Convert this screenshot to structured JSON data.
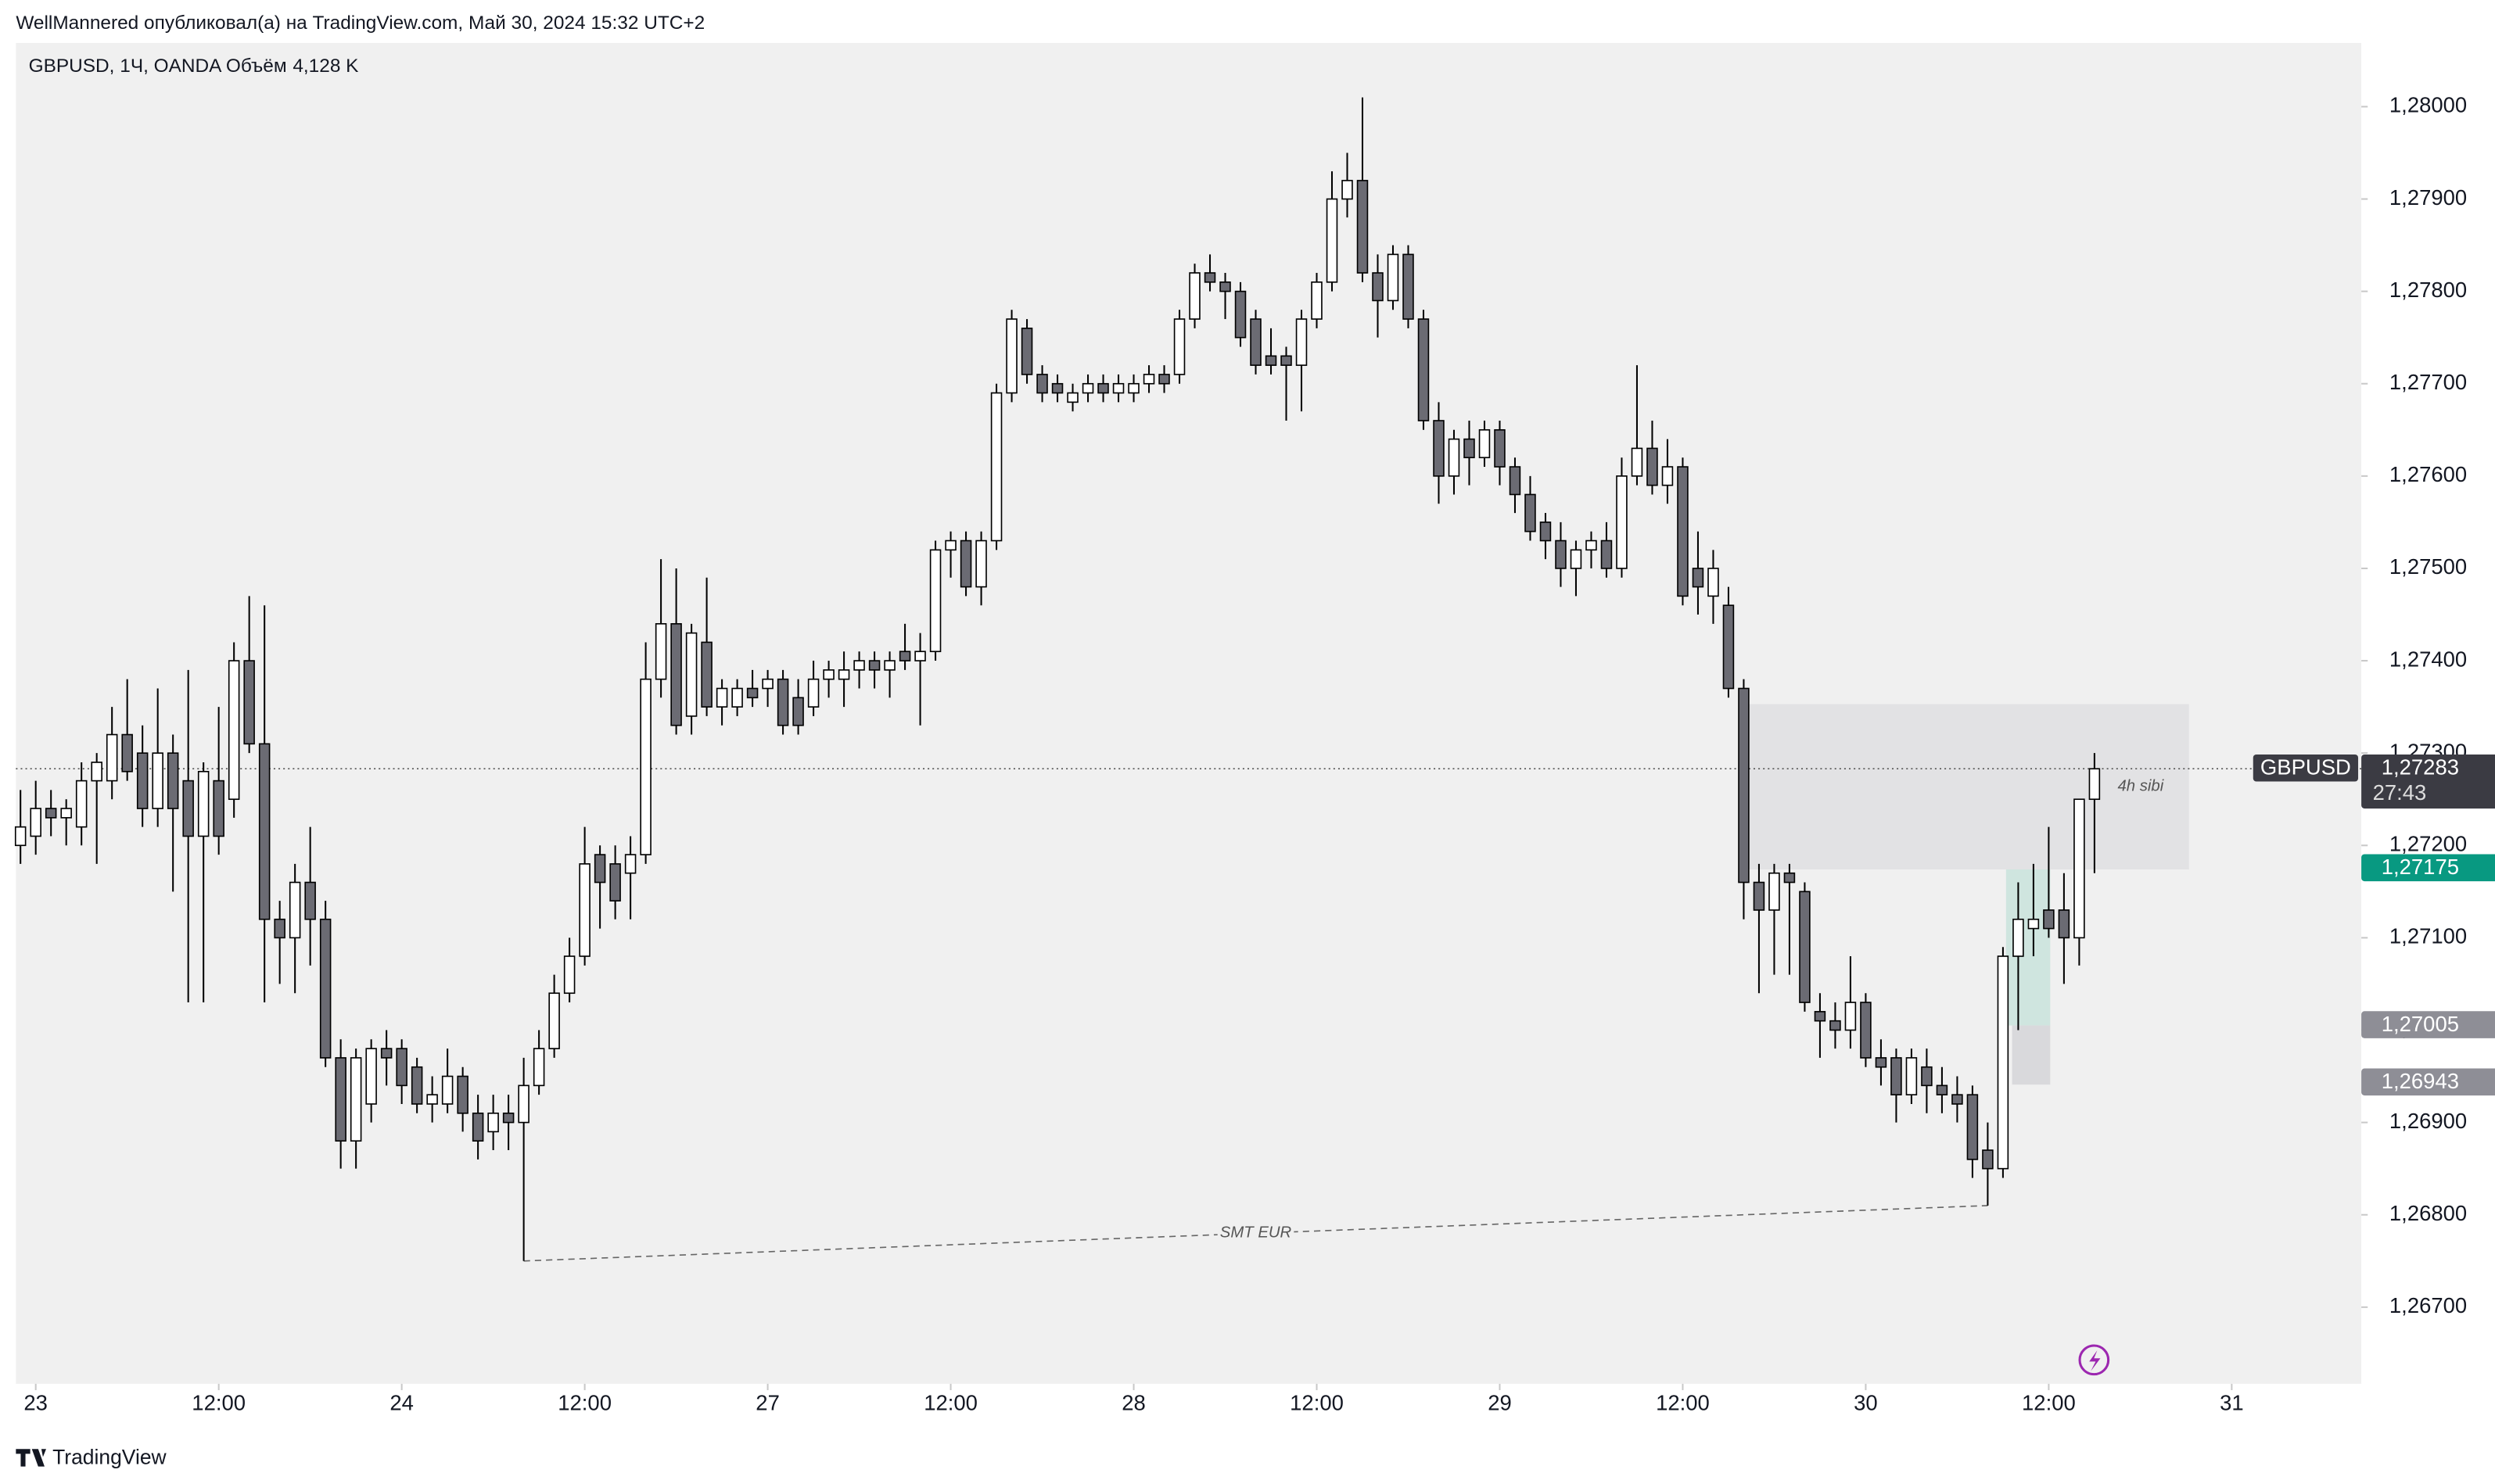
{
  "header": "WellMannered опубликовал(а) на TradingView.com, Май 30, 2024 15:32 UTC+2",
  "footer": "TradingView",
  "chart_data": {
    "type": "candlestick",
    "title": "GBPUSD, 1Ч, OANDA",
    "volume_name": "Объём",
    "volume_label": "4,128 K",
    "grid": false,
    "up_color": "#ffffff",
    "down_color": "#6b6b73",
    "open": [
      1.272,
      1.2721,
      1.2724,
      1.2723,
      1.2722,
      1.2727,
      1.2727,
      1.2732,
      1.273,
      1.2724,
      1.273,
      1.2727,
      1.2721,
      1.2727,
      1.2725,
      1.274,
      1.2731,
      1.2712,
      1.271,
      1.2716,
      1.2712,
      1.2697,
      1.2688,
      1.2692,
      1.2698,
      1.2698,
      1.2696,
      1.2692,
      1.2692,
      1.2695,
      1.2691,
      1.2689,
      1.2691,
      1.269,
      1.2694,
      1.2698,
      1.2704,
      1.2708,
      1.2719,
      1.2718,
      1.2717,
      1.2719,
      1.2738,
      1.2744,
      1.2734,
      1.2742,
      1.2735,
      1.2735,
      1.2737,
      1.2737,
      1.2738,
      1.2736,
      1.2735,
      1.2738,
      1.2738,
      1.2739,
      1.274,
      1.2739,
      1.2741,
      1.274,
      1.2741,
      1.2752,
      1.2753,
      1.2748,
      1.2753,
      1.2769,
      1.2776,
      1.2771,
      1.277,
      1.2768,
      1.2769,
      1.277,
      1.2769,
      1.2769,
      1.277,
      1.2771,
      1.2771,
      1.2777,
      1.2782,
      1.2781,
      1.278,
      1.2777,
      1.2773,
      1.2773,
      1.2772,
      1.2777,
      1.2781,
      1.279,
      1.2792,
      1.2782,
      1.2779,
      1.2784,
      1.2777,
      1.2766,
      1.276,
      1.2764,
      1.2762,
      1.2765,
      1.2761,
      1.2758,
      1.2755,
      1.2753,
      1.275,
      1.2752,
      1.2753,
      1.275,
      1.276,
      1.2763,
      1.2759,
      1.2761,
      1.275,
      1.2747,
      1.2746,
      1.2737,
      1.2716,
      1.2713,
      1.2717,
      1.2715,
      1.2702,
      1.2701,
      1.27,
      1.2703,
      1.2697,
      1.2697,
      1.2693,
      1.2696,
      1.2694,
      1.2693,
      1.2693,
      1.2687,
      1.2685,
      1.2708,
      1.2711,
      1.2713,
      1.2713,
      1.271,
      1.2725
    ],
    "high": [
      1.2726,
      1.2727,
      1.2726,
      1.2725,
      1.2729,
      1.273,
      1.2735,
      1.2738,
      1.2733,
      1.2737,
      1.2732,
      1.2739,
      1.2729,
      1.2735,
      1.2742,
      1.2747,
      1.2746,
      1.2714,
      1.2718,
      1.2722,
      1.2714,
      1.2699,
      1.2698,
      1.2699,
      1.27,
      1.2699,
      1.2697,
      1.2695,
      1.2698,
      1.2696,
      1.2693,
      1.2693,
      1.2693,
      1.2697,
      1.27,
      1.2706,
      1.271,
      1.2722,
      1.272,
      1.272,
      1.2721,
      1.2742,
      1.2751,
      1.275,
      1.2744,
      1.2749,
      1.2738,
      1.2738,
      1.2739,
      1.2739,
      1.2739,
      1.2738,
      1.274,
      1.274,
      1.2741,
      1.2741,
      1.2741,
      1.2741,
      1.2744,
      1.2743,
      1.2753,
      1.2754,
      1.2754,
      1.2754,
      1.277,
      1.2778,
      1.2777,
      1.2772,
      1.2771,
      1.277,
      1.2771,
      1.2771,
      1.2771,
      1.2771,
      1.2772,
      1.2772,
      1.2778,
      1.2783,
      1.2784,
      1.2782,
      1.2781,
      1.2778,
      1.2776,
      1.2774,
      1.2778,
      1.2782,
      1.2793,
      1.2795,
      1.2801,
      1.2784,
      1.2785,
      1.2785,
      1.2778,
      1.2768,
      1.2765,
      1.2766,
      1.2766,
      1.2766,
      1.2762,
      1.276,
      1.2756,
      1.2755,
      1.2753,
      1.2754,
      1.2755,
      1.2762,
      1.2772,
      1.2766,
      1.2764,
      1.2762,
      1.2754,
      1.2752,
      1.2748,
      1.2738,
      1.2718,
      1.2718,
      1.2718,
      1.2716,
      1.2704,
      1.2703,
      1.2708,
      1.2704,
      1.2699,
      1.2698,
      1.2698,
      1.2698,
      1.2696,
      1.2695,
      1.2694,
      1.269,
      1.2709,
      1.2716,
      1.2718,
      1.2722,
      1.2717,
      1.2725,
      1.273
    ],
    "low": [
      1.2718,
      1.2719,
      1.2721,
      1.272,
      1.272,
      1.2718,
      1.2725,
      1.2727,
      1.2722,
      1.2722,
      1.2715,
      1.2703,
      1.2703,
      1.2719,
      1.2723,
      1.273,
      1.2703,
      1.2705,
      1.2704,
      1.2707,
      1.2696,
      1.2685,
      1.2685,
      1.269,
      1.2694,
      1.2692,
      1.2691,
      1.269,
      1.2691,
      1.2689,
      1.2686,
      1.2687,
      1.2687,
      1.2675,
      1.2693,
      1.2697,
      1.2703,
      1.2707,
      1.2711,
      1.2712,
      1.2712,
      1.2718,
      1.2736,
      1.2732,
      1.2732,
      1.2734,
      1.2733,
      1.2734,
      1.2735,
      1.2735,
      1.2732,
      1.2732,
      1.2734,
      1.2736,
      1.2735,
      1.2737,
      1.2737,
      1.2736,
      1.2739,
      1.2733,
      1.274,
      1.2749,
      1.2747,
      1.2746,
      1.2752,
      1.2768,
      1.277,
      1.2768,
      1.2768,
      1.2767,
      1.2768,
      1.2768,
      1.2768,
      1.2768,
      1.2769,
      1.2769,
      1.277,
      1.2776,
      1.278,
      1.2777,
      1.2774,
      1.2771,
      1.2771,
      1.2766,
      1.2767,
      1.2776,
      1.278,
      1.2788,
      1.2781,
      1.2775,
      1.2778,
      1.2776,
      1.2765,
      1.2757,
      1.2758,
      1.2759,
      1.2761,
      1.2759,
      1.2756,
      1.2753,
      1.2751,
      1.2748,
      1.2747,
      1.275,
      1.2749,
      1.2749,
      1.2759,
      1.2758,
      1.2757,
      1.2746,
      1.2745,
      1.2744,
      1.2736,
      1.2712,
      1.2704,
      1.2706,
      1.2706,
      1.2702,
      1.2697,
      1.2698,
      1.2698,
      1.2696,
      1.2694,
      1.269,
      1.2692,
      1.2691,
      1.2691,
      1.269,
      1.2684,
      1.2681,
      1.2684,
      1.27,
      1.2708,
      1.271,
      1.2705,
      1.2707,
      1.2717
    ],
    "close": [
      1.2722,
      1.2724,
      1.2723,
      1.2724,
      1.2727,
      1.2729,
      1.2732,
      1.2728,
      1.2724,
      1.273,
      1.2724,
      1.2721,
      1.2728,
      1.2721,
      1.274,
      1.2731,
      1.2712,
      1.271,
      1.2716,
      1.2712,
      1.2697,
      1.2688,
      1.2697,
      1.2698,
      1.2697,
      1.2694,
      1.2692,
      1.2693,
      1.2695,
      1.2691,
      1.2688,
      1.2691,
      1.269,
      1.2694,
      1.2698,
      1.2704,
      1.2708,
      1.2718,
      1.2716,
      1.2714,
      1.2719,
      1.2738,
      1.2744,
      1.2733,
      1.2743,
      1.2735,
      1.2737,
      1.2737,
      1.2736,
      1.2738,
      1.2733,
      1.2733,
      1.2738,
      1.2739,
      1.2739,
      1.274,
      1.2739,
      1.274,
      1.274,
      1.2741,
      1.2752,
      1.2753,
      1.2748,
      1.2753,
      1.2769,
      1.2777,
      1.2771,
      1.2769,
      1.2769,
      1.2769,
      1.277,
      1.2769,
      1.277,
      1.277,
      1.2771,
      1.277,
      1.2777,
      1.2782,
      1.2781,
      1.278,
      1.2775,
      1.2772,
      1.2772,
      1.2772,
      1.2777,
      1.2781,
      1.279,
      1.2792,
      1.2782,
      1.2779,
      1.2784,
      1.2777,
      1.2766,
      1.276,
      1.2764,
      1.2762,
      1.2765,
      1.2761,
      1.2758,
      1.2754,
      1.2753,
      1.275,
      1.2752,
      1.2753,
      1.275,
      1.276,
      1.2763,
      1.2759,
      1.2761,
      1.2747,
      1.2748,
      1.275,
      1.2737,
      1.2716,
      1.2713,
      1.2717,
      1.2716,
      1.2703,
      1.2701,
      1.27,
      1.2703,
      1.2697,
      1.2696,
      1.2693,
      1.2697,
      1.2694,
      1.2693,
      1.2692,
      1.2686,
      1.2685,
      1.2708,
      1.2712,
      1.2712,
      1.2711,
      1.271,
      1.2725,
      1.27283
    ],
    "xlim": [
      -0.3,
      153.5
    ],
    "xticks": [
      {
        "value": 1,
        "label": "23"
      },
      {
        "value": 13,
        "label": "12:00"
      },
      {
        "value": 25,
        "label": "24"
      },
      {
        "value": 37,
        "label": "12:00"
      },
      {
        "value": 49,
        "label": "27"
      },
      {
        "value": 61,
        "label": "12:00"
      },
      {
        "value": 73,
        "label": "28"
      },
      {
        "value": 85,
        "label": "12:00"
      },
      {
        "value": 97,
        "label": "29"
      },
      {
        "value": 109,
        "label": "12:00"
      },
      {
        "value": 121,
        "label": "30"
      },
      {
        "value": 133,
        "label": "12:00"
      },
      {
        "value": 145,
        "label": "31"
      }
    ],
    "ylim": [
      1.26617,
      1.28069
    ],
    "yticks": [
      {
        "value": 1.267,
        "label": "1,26700"
      },
      {
        "value": 1.268,
        "label": "1,26800"
      },
      {
        "value": 1.269,
        "label": "1,26900"
      },
      {
        "value": 1.27,
        "label": "1,27000"
      },
      {
        "value": 1.271,
        "label": "1,27100"
      },
      {
        "value": 1.272,
        "label": "1,27200"
      },
      {
        "value": 1.273,
        "label": "1,27300"
      },
      {
        "value": 1.274,
        "label": "1,27400"
      },
      {
        "value": 1.275,
        "label": "1,27500"
      },
      {
        "value": 1.276,
        "label": "1,27600"
      },
      {
        "value": 1.277,
        "label": "1,27700"
      },
      {
        "value": 1.278,
        "label": "1,27800"
      },
      {
        "value": 1.279,
        "label": "1,27900"
      },
      {
        "value": 1.28,
        "label": "1,28000"
      }
    ],
    "price_tags": [
      {
        "name": "GBPUSD",
        "value": 1.27283,
        "label": "1,27283",
        "countdown": "27:43",
        "color": "#3b3b43"
      },
      {
        "value": 1.27175,
        "label": "1,27175",
        "color": "#089981"
      },
      {
        "value": 1.27005,
        "label": "1,27005",
        "color": "#8e8e96"
      },
      {
        "value": 1.26943,
        "label": "1,26943",
        "color": "#8e8e96"
      }
    ],
    "zones": [
      {
        "label": "4h sibi",
        "x": [
          112.7,
          142.2
        ],
        "y": [
          1.27174,
          1.27353
        ],
        "color": "#e2e2e4"
      },
      {
        "x": [
          130.2,
          133.1
        ],
        "y": [
          1.27005,
          1.27174
        ],
        "color": "#cfe5df"
      },
      {
        "x": [
          130.6,
          133.1
        ],
        "y": [
          1.26941,
          1.27005
        ],
        "color": "#d9d9dc"
      }
    ],
    "lines": [
      {
        "label": "SMT EUR",
        "x": [
          33,
          129
        ],
        "y": [
          1.2675,
          1.2681
        ]
      }
    ]
  }
}
